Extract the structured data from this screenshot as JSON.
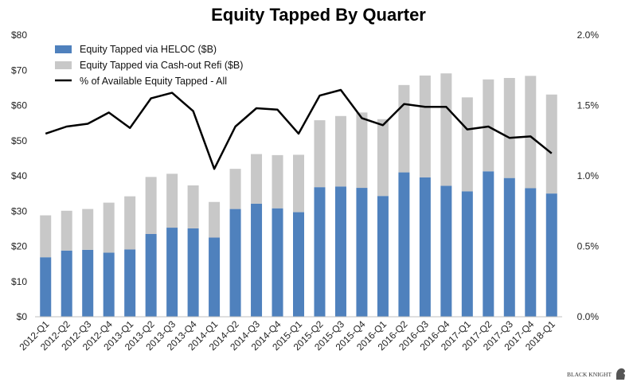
{
  "chart_data": {
    "type": "bar",
    "title": "Equity Tapped By Quarter",
    "categories": [
      "2012-Q1",
      "2012-Q2",
      "2012-Q3",
      "2012-Q4",
      "2013-Q1",
      "2013-Q2",
      "2013-Q3",
      "2013-Q4",
      "2014-Q1",
      "2014-Q2",
      "2014-Q3",
      "2014-Q4",
      "2015-Q1",
      "2015-Q2",
      "2015-Q3",
      "2015-Q4",
      "2016-Q1",
      "2016-Q2",
      "2016-Q3",
      "2016-Q4",
      "2017-Q1",
      "2017-Q2",
      "2017-Q3",
      "2017-Q4",
      "2018-Q1"
    ],
    "series": [
      {
        "name": "Equity Tapped via HELOC ($B)",
        "type": "bar",
        "axis": "left",
        "color": "#4f81bd",
        "values": [
          16.9,
          18.8,
          19.0,
          18.2,
          19.1,
          23.5,
          25.3,
          25.1,
          22.5,
          30.6,
          32.1,
          30.8,
          29.7,
          36.8,
          37.0,
          36.6,
          34.3,
          41.0,
          39.6,
          37.2,
          35.6,
          41.3,
          39.4,
          36.5,
          35.0
        ]
      },
      {
        "name": "Equity Tapped via Cash-out Refi ($B)",
        "type": "bar",
        "axis": "left",
        "color": "#c8c8c8",
        "values": [
          11.9,
          11.3,
          11.6,
          14.2,
          15.1,
          16.2,
          15.3,
          12.2,
          10.1,
          11.4,
          14.1,
          15.1,
          16.3,
          19.0,
          20.0,
          21.4,
          21.8,
          24.8,
          28.9,
          31.9,
          26.7,
          26.1,
          28.4,
          31.9,
          28.1
        ]
      },
      {
        "name": "% of Available Equity Tapped - All",
        "type": "line",
        "axis": "right",
        "color": "#000000",
        "values": [
          1.3,
          1.35,
          1.37,
          1.45,
          1.34,
          1.55,
          1.59,
          1.46,
          1.05,
          1.35,
          1.48,
          1.47,
          1.3,
          1.57,
          1.61,
          1.41,
          1.36,
          1.51,
          1.49,
          1.49,
          1.33,
          1.35,
          1.27,
          1.28,
          1.16
        ]
      }
    ],
    "y_left": {
      "ylim": [
        0,
        80
      ],
      "ticks": [
        "$0",
        "$10",
        "$20",
        "$30",
        "$40",
        "$50",
        "$60",
        "$70",
        "$80"
      ]
    },
    "y_right": {
      "ylim": [
        0,
        2.0
      ],
      "ticks": [
        "0.0%",
        "0.5%",
        "1.0%",
        "1.5%",
        "2.0%"
      ]
    },
    "grid": false,
    "legend_position": "top-left"
  },
  "watermark": {
    "text": "BLACK KNIGHT"
  }
}
